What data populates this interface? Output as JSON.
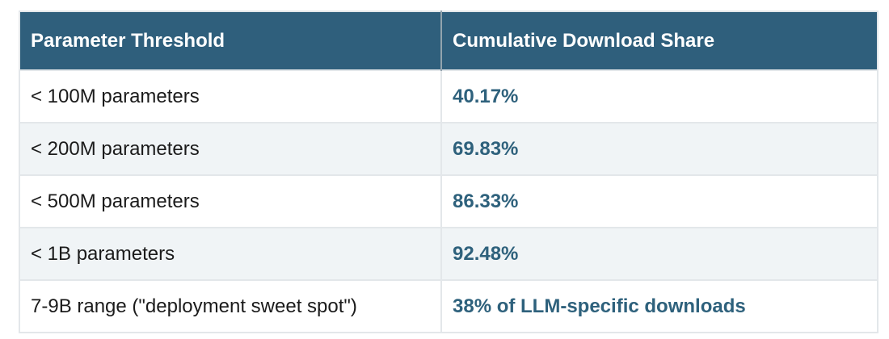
{
  "colors": {
    "header_bg": "#2F5F7C",
    "header_text": "#FFFFFF",
    "body_text": "#1B1B1B",
    "value_text": "#2E617C",
    "stripe_bg": "#F0F4F6",
    "grid_line": "#E3E7EA",
    "header_divider": "#93A4AE",
    "page_bg": "#FFFFFF"
  },
  "table": {
    "columns": [
      "Parameter Threshold",
      "Cumulative Download Share"
    ],
    "rows": [
      {
        "threshold": "< 100M parameters",
        "share": "40.17%"
      },
      {
        "threshold": "< 200M parameters",
        "share": "69.83%"
      },
      {
        "threshold": "< 500M parameters",
        "share": "86.33%"
      },
      {
        "threshold": "< 1B parameters",
        "share": "92.48%"
      },
      {
        "threshold": "7-9B range (\"deployment sweet spot\")",
        "share": "38% of LLM-specific downloads"
      }
    ]
  },
  "chart_data": {
    "type": "table",
    "columns": [
      "Parameter Threshold",
      "Cumulative Download Share"
    ],
    "rows": [
      [
        "< 100M parameters",
        "40.17%"
      ],
      [
        "< 200M parameters",
        "69.83%"
      ],
      [
        "< 500M parameters",
        "86.33%"
      ],
      [
        "< 1B parameters",
        "92.48%"
      ],
      [
        "7-9B range (\"deployment sweet spot\")",
        "38% of LLM-specific downloads"
      ]
    ],
    "numeric_values": {
      "cumulative_download_share_percent": {
        "lt_100M_parameters": 40.17,
        "lt_200M_parameters": 69.83,
        "lt_500M_parameters": 86.33,
        "lt_1B_parameters": 92.48
      },
      "7_9B_range_share_of_llm_specific_downloads_percent": 38
    },
    "layout": {
      "header_position": "top",
      "striped_rows": true,
      "value_column_emphasis": "bold teal"
    }
  }
}
